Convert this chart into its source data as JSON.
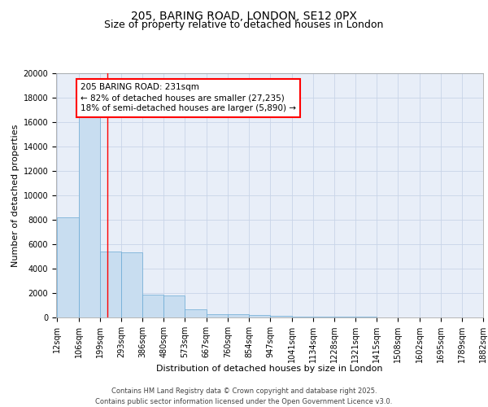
{
  "title1": "205, BARING ROAD, LONDON, SE12 0PX",
  "title2": "Size of property relative to detached houses in London",
  "xlabel": "Distribution of detached houses by size in London",
  "ylabel": "Number of detached properties",
  "bar_edges": [
    12,
    106,
    199,
    293,
    386,
    480,
    573,
    667,
    760,
    854,
    947,
    1041,
    1134,
    1228,
    1321,
    1415,
    1508,
    1602,
    1695,
    1789,
    1882
  ],
  "bar_heights": [
    8200,
    16500,
    5400,
    5350,
    1850,
    1820,
    700,
    300,
    250,
    180,
    130,
    90,
    70,
    50,
    40,
    30,
    20,
    15,
    10,
    8
  ],
  "bar_color": "#c8ddf0",
  "bar_edge_color": "#6aaad4",
  "grid_color": "#c8d4e8",
  "background_color": "#e8eef8",
  "red_line_x": 231,
  "annotation_text": "205 BARING ROAD: 231sqm\n← 82% of detached houses are smaller (27,235)\n18% of semi-detached houses are larger (5,890) →",
  "ylim": [
    0,
    20000
  ],
  "yticks": [
    0,
    2000,
    4000,
    6000,
    8000,
    10000,
    12000,
    14000,
    16000,
    18000,
    20000
  ],
  "xtick_labels": [
    "12sqm",
    "106sqm",
    "199sqm",
    "293sqm",
    "386sqm",
    "480sqm",
    "573sqm",
    "667sqm",
    "760sqm",
    "854sqm",
    "947sqm",
    "1041sqm",
    "1134sqm",
    "1228sqm",
    "1321sqm",
    "1415sqm",
    "1508sqm",
    "1602sqm",
    "1695sqm",
    "1789sqm",
    "1882sqm"
  ],
  "footer_text": "Contains HM Land Registry data © Crown copyright and database right 2025.\nContains public sector information licensed under the Open Government Licence v3.0.",
  "title_fontsize": 10,
  "subtitle_fontsize": 9,
  "axis_label_fontsize": 8,
  "tick_fontsize": 7,
  "annotation_fontsize": 7.5,
  "footer_fontsize": 6
}
